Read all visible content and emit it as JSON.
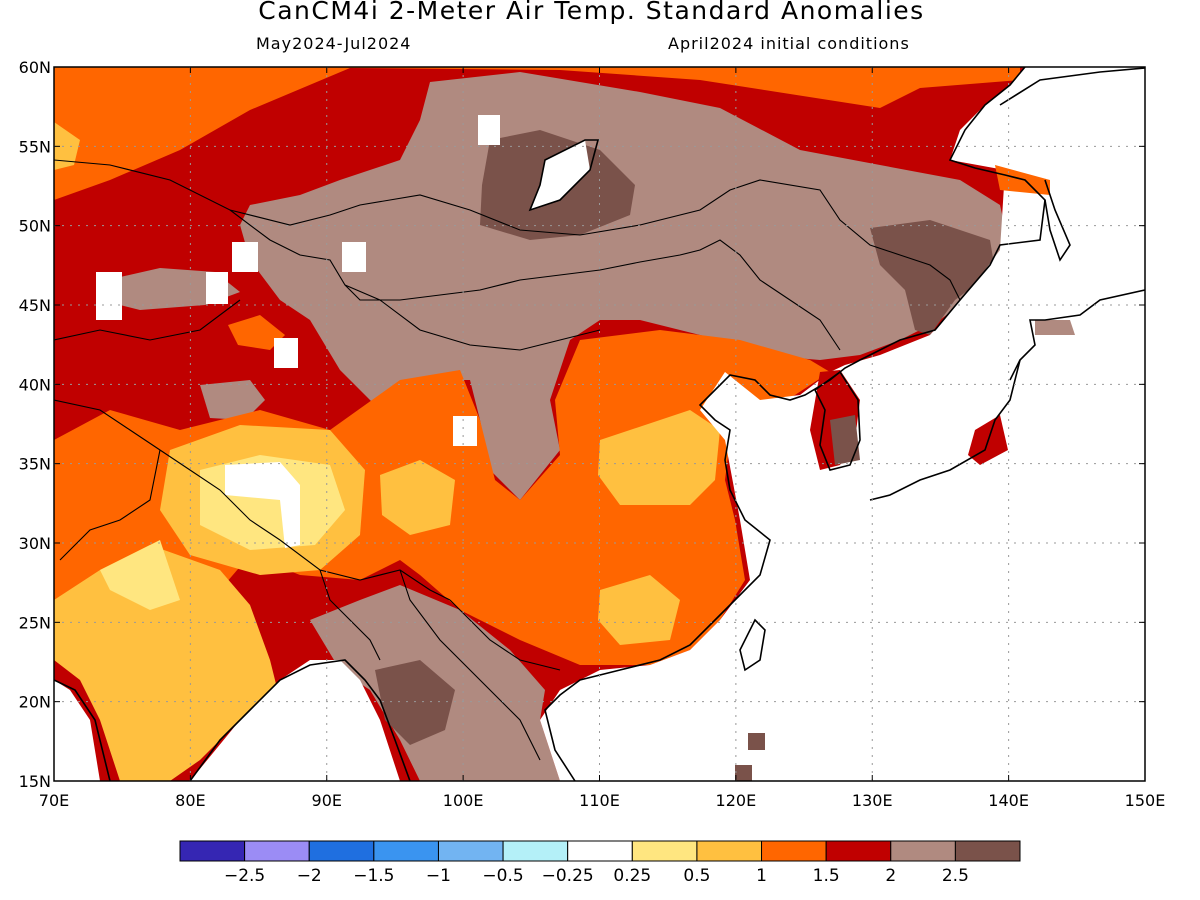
{
  "header": {
    "title": "CanCM4i 2-Meter Air Temp. Standard Anomalies",
    "period": "May2024-Jul2024",
    "init": "April2024 initial conditions"
  },
  "map": {
    "lon_range": [
      70,
      150
    ],
    "lat_range": [
      15,
      60
    ],
    "lon_labels": [
      "70E",
      "80E",
      "90E",
      "100E",
      "110E",
      "120E",
      "130E",
      "140E",
      "150E"
    ],
    "lat_labels": [
      "15N",
      "20N",
      "25N",
      "30N",
      "35N",
      "40N",
      "45N",
      "50N",
      "55N",
      "60N"
    ]
  },
  "colorbar": {
    "colors": [
      "#3526b3",
      "#9b8cf5",
      "#1f6fe0",
      "#3a94f0",
      "#72b4f2",
      "#b4f0f8",
      "#ffffff",
      "#ffe680",
      "#ffc040",
      "#ff6600",
      "#c00000",
      "#b08a80",
      "#7a524a"
    ],
    "labels": [
      "-2.5",
      "-2",
      "-1.5",
      "-1",
      "-0.5",
      "-0.25",
      "0.25",
      "0.5",
      "1",
      "1.5",
      "2",
      "2.5"
    ]
  }
}
